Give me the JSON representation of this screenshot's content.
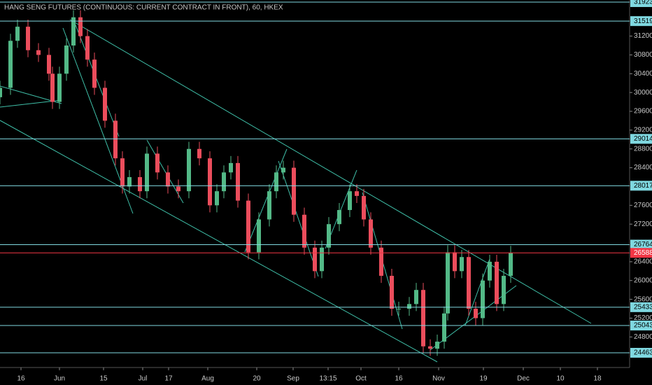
{
  "chart_data": {
    "type": "candlestick",
    "title": "HANG SENG FUTURES (CONTINUOUS: CURRENT CONTRACT IN FRONT), 60, HKEX",
    "x": [
      0,
      3,
      5,
      8,
      11,
      14,
      15,
      17,
      19,
      21,
      23,
      25,
      27,
      30,
      33,
      35,
      37,
      40,
      42,
      45,
      48,
      51,
      54,
      57,
      60,
      62,
      64,
      66,
      68,
      71,
      74,
      77,
      79,
      81,
      84,
      87,
      90,
      92,
      94,
      97,
      100,
      102,
      104,
      106,
      109,
      112,
      114,
      117,
      119,
      121,
      123,
      125,
      127,
      128,
      130,
      132,
      134,
      136,
      138,
      140,
      142,
      144,
      146
    ],
    "open": [
      29900,
      30100,
      31100,
      31400,
      30900,
      30800,
      30400,
      29800,
      30400,
      31000,
      31600,
      31200,
      30700,
      30100,
      29400,
      28600,
      28000,
      28200,
      27900,
      28700,
      28300,
      28000,
      27900,
      28800,
      28600,
      27600,
      27900,
      28300,
      28500,
      27700,
      26600,
      27300,
      27900,
      28300,
      28400,
      27400,
      26700,
      26200,
      26700,
      27200,
      27500,
      27900,
      27800,
      27300,
      26700,
      26100,
      25400,
      25400,
      25500,
      25800,
      24600,
      24550,
      24700,
      25300,
      26600,
      26200,
      26500,
      25400,
      25200,
      26000,
      26400,
      25500,
      26100
    ],
    "high": [
      30250,
      31250,
      31550,
      31550,
      31050,
      30950,
      30550,
      30550,
      31150,
      31750,
      31750,
      31350,
      30850,
      30250,
      29550,
      28750,
      28350,
      28350,
      28850,
      28850,
      28450,
      28150,
      28950,
      28950,
      28750,
      28050,
      28450,
      28650,
      28650,
      27850,
      27450,
      28050,
      28450,
      28550,
      28550,
      27550,
      26850,
      26850,
      27350,
      27650,
      28050,
      28050,
      27950,
      27450,
      26850,
      26250,
      25550,
      25650,
      25950,
      25950,
      24750,
      24850,
      25450,
      26750,
      26750,
      26650,
      26650,
      25550,
      26150,
      26550,
      26550,
      26250,
      26738
    ],
    "low": [
      29750,
      29950,
      30950,
      30750,
      30650,
      30250,
      29650,
      29650,
      30250,
      30850,
      31050,
      30550,
      29950,
      29250,
      28450,
      27850,
      27850,
      27750,
      27750,
      28150,
      27850,
      27750,
      27750,
      28450,
      27450,
      27450,
      27750,
      28150,
      27550,
      26450,
      26450,
      27150,
      27750,
      28150,
      27250,
      26550,
      26050,
      26050,
      26550,
      27050,
      27350,
      27650,
      27150,
      26550,
      25950,
      25250,
      25250,
      25250,
      25350,
      24450,
      24400,
      24400,
      24550,
      25150,
      26050,
      26050,
      25250,
      25050,
      25050,
      25850,
      25350,
      25350,
      25950
    ],
    "close": [
      30100,
      31100,
      31400,
      30900,
      30800,
      30400,
      29800,
      30400,
      31000,
      31600,
      31200,
      30700,
      30100,
      29400,
      28600,
      28000,
      28200,
      27900,
      28700,
      28300,
      28000,
      27900,
      28800,
      28600,
      27600,
      27900,
      28300,
      28500,
      27700,
      26600,
      27300,
      27900,
      28300,
      28400,
      27400,
      26700,
      26200,
      26700,
      27200,
      27500,
      27900,
      27800,
      27300,
      26700,
      26100,
      25400,
      25400,
      25500,
      25800,
      24600,
      24550,
      24700,
      25300,
      26600,
      26200,
      26500,
      25400,
      25200,
      26000,
      26400,
      25500,
      26100,
      26588
    ],
    "up_color": "#53b987",
    "down_color": "#eb4d5c",
    "levels": [
      31923,
      31519,
      29014,
      28017,
      26764,
      25433,
      25043,
      24463
    ],
    "level_color": "#7fd8e0",
    "last_price": 26588,
    "last_color": "#f23645",
    "ylim": [
      24150,
      31968
    ],
    "yticks": [
      31200,
      30800,
      30400,
      30000,
      29600,
      29200,
      28800,
      28400,
      27600,
      27200,
      26400,
      26000,
      25600,
      25200,
      24800
    ],
    "xlim": [
      0,
      180
    ],
    "xticks": [
      {
        "value": 6,
        "label": "16"
      },
      {
        "value": 17,
        "label": "Jun"
      },
      {
        "value": 29.6,
        "label": "15"
      },
      {
        "value": 40.8,
        "label": "Jul"
      },
      {
        "value": 48.2,
        "label": "17"
      },
      {
        "value": 59.4,
        "label": "Aug"
      },
      {
        "value": 73.4,
        "label": "20"
      },
      {
        "value": 83.8,
        "label": "Sep"
      },
      {
        "value": 93.8,
        "label": "13:15"
      },
      {
        "value": 103.2,
        "label": "Oct"
      },
      {
        "value": 114,
        "label": "16"
      },
      {
        "value": 125.4,
        "label": "Nov"
      },
      {
        "value": 138.2,
        "label": "19"
      },
      {
        "value": 149.6,
        "label": "Dec"
      },
      {
        "value": 160.2,
        "label": "10"
      },
      {
        "value": 170.8,
        "label": "18"
      }
    ]
  }
}
